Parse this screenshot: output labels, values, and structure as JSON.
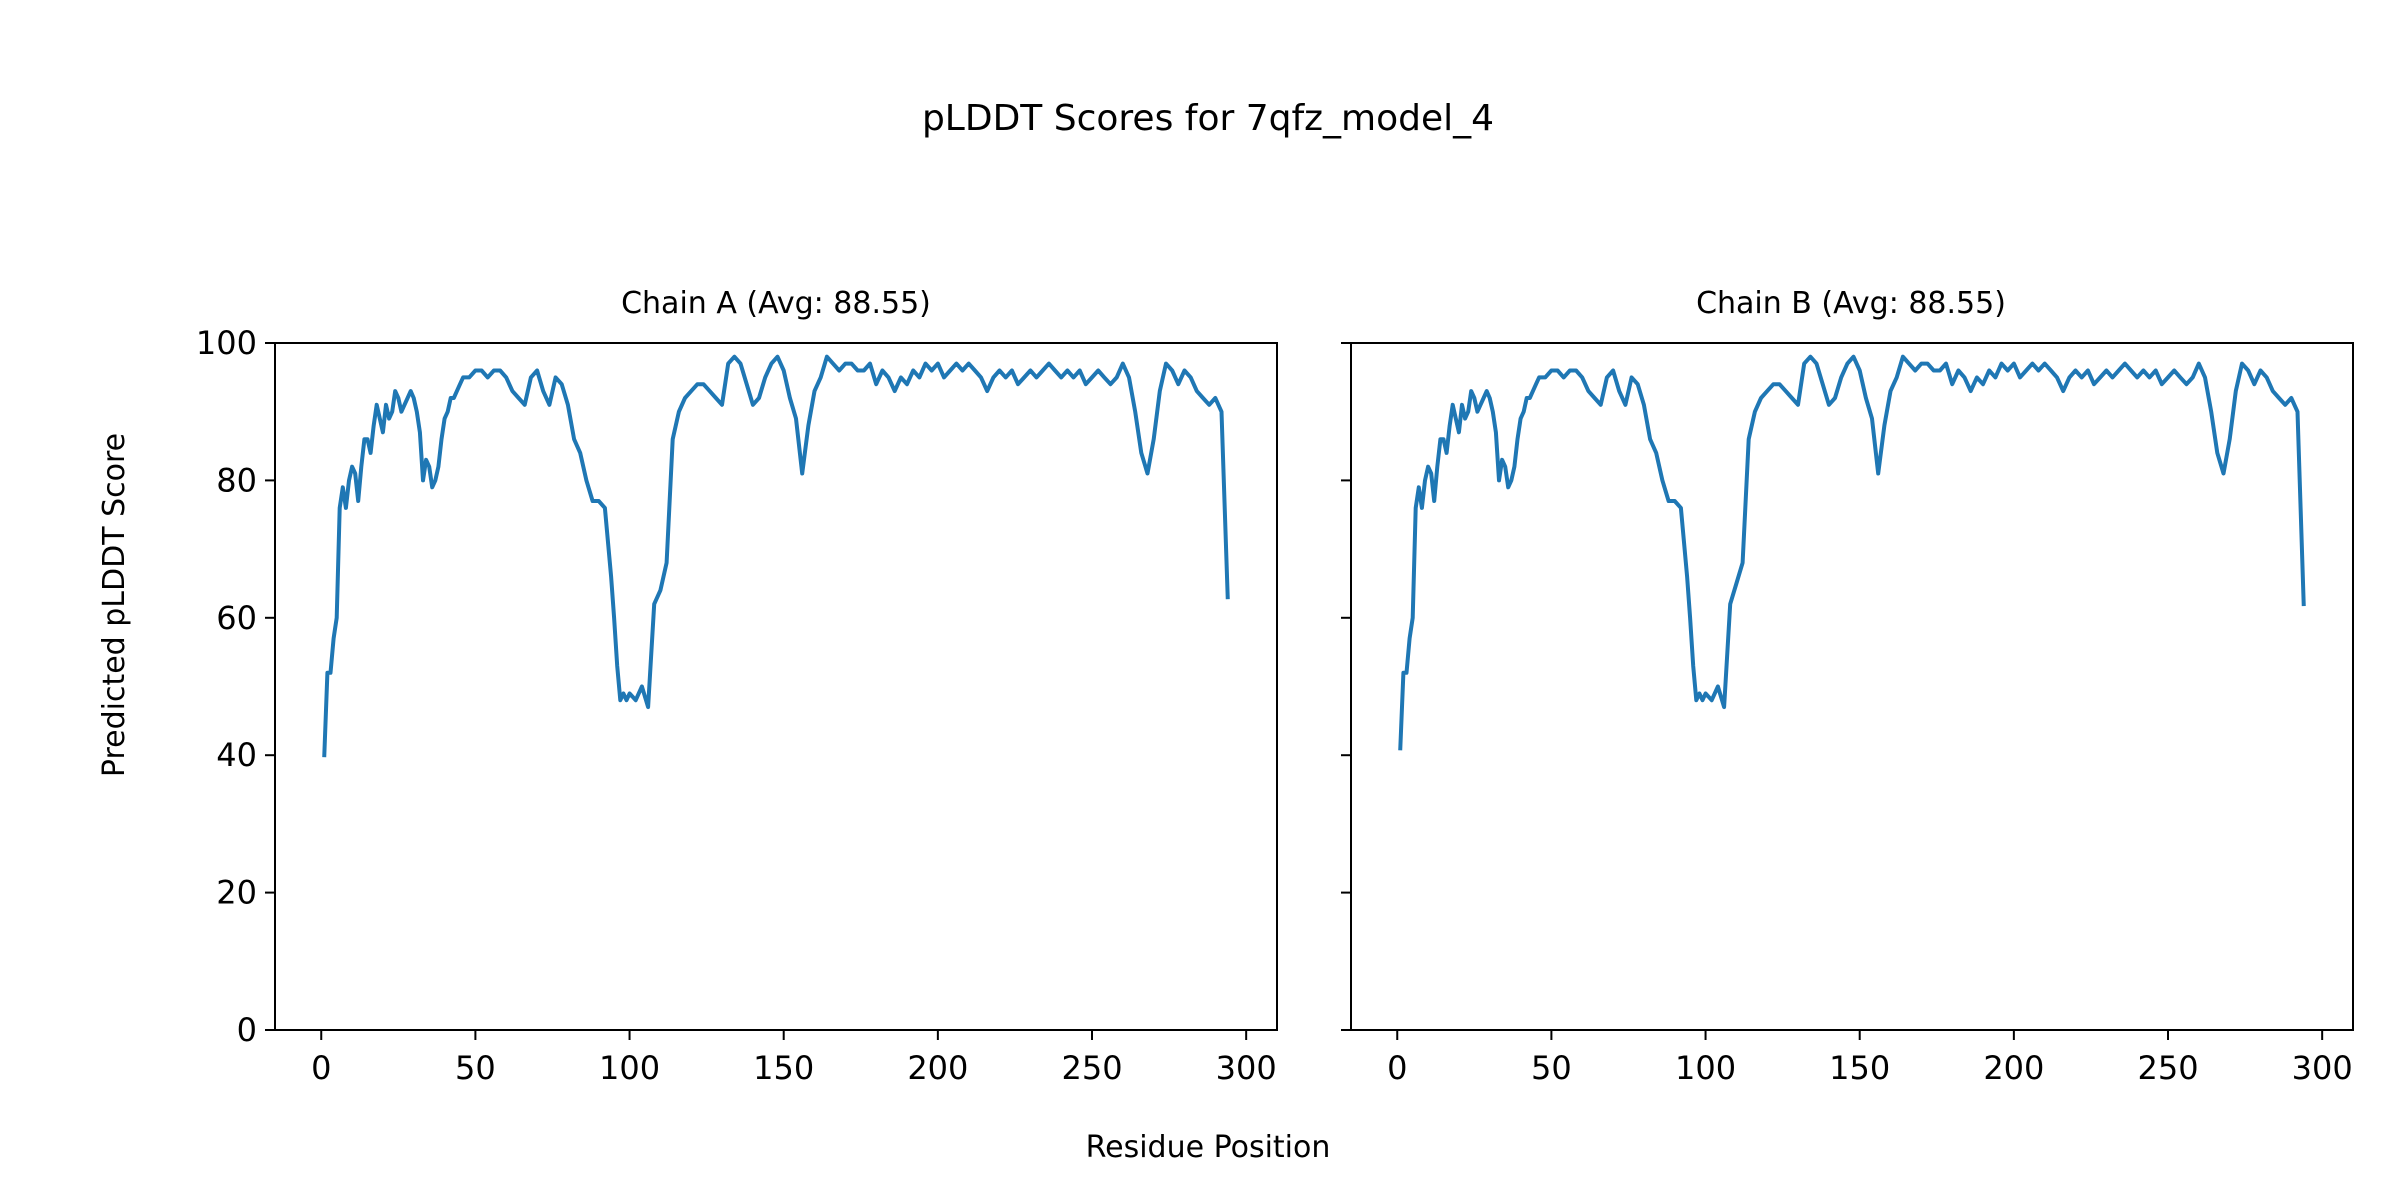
{
  "figure": {
    "title": "pLDDT Scores for 7qfz_model_4",
    "xlabel": "Residue Position",
    "ylabel": "Predicted pLDDT Score"
  },
  "colors": {
    "line": "#1f77b4",
    "axis": "#000000",
    "background": "#ffffff"
  },
  "chart_data": [
    {
      "type": "line",
      "title": "Chain A (Avg: 88.55)",
      "xlabel": "Residue Position",
      "ylabel": "Predicted pLDDT Score",
      "xlim": [
        -15,
        310
      ],
      "ylim": [
        0,
        100
      ],
      "xticks": [
        0,
        50,
        100,
        150,
        200,
        250,
        300
      ],
      "yticks": [
        0,
        20,
        40,
        60,
        80,
        100
      ],
      "grid": false,
      "series": [
        {
          "x": [
            1,
            2,
            3,
            4,
            5,
            6,
            7,
            8,
            9,
            10,
            11,
            12,
            13,
            14,
            15,
            16,
            17,
            18,
            19,
            20,
            21,
            22,
            23,
            24,
            25,
            26,
            27,
            28,
            29,
            30,
            31,
            32,
            33,
            34,
            35,
            36,
            37,
            38,
            39,
            40,
            41,
            42,
            43,
            44,
            45,
            46,
            48,
            50,
            52,
            54,
            56,
            58,
            60,
            62,
            64,
            66,
            68,
            70,
            72,
            74,
            76,
            78,
            80,
            82,
            84,
            86,
            88,
            90,
            92,
            94,
            95,
            96,
            97,
            98,
            99,
            100,
            102,
            104,
            106,
            108,
            110,
            112,
            114,
            116,
            118,
            120,
            122,
            124,
            126,
            128,
            130,
            132,
            134,
            136,
            138,
            140,
            142,
            144,
            146,
            148,
            150,
            152,
            154,
            156,
            158,
            160,
            162,
            164,
            166,
            168,
            170,
            172,
            174,
            176,
            178,
            180,
            182,
            184,
            186,
            188,
            190,
            192,
            194,
            196,
            198,
            200,
            202,
            204,
            206,
            208,
            210,
            212,
            214,
            216,
            218,
            220,
            222,
            224,
            226,
            228,
            230,
            232,
            234,
            236,
            238,
            240,
            242,
            244,
            246,
            248,
            250,
            252,
            254,
            256,
            258,
            260,
            262,
            264,
            266,
            268,
            270,
            272,
            274,
            276,
            278,
            280,
            282,
            284,
            286,
            288,
            290,
            292,
            294
          ],
          "y": [
            40,
            52,
            52,
            57,
            60,
            76,
            79,
            76,
            80,
            82,
            81,
            77,
            82,
            86,
            86,
            84,
            88,
            91,
            89,
            87,
            91,
            89,
            90,
            93,
            92,
            90,
            91,
            92,
            93,
            92,
            90,
            87,
            80,
            83,
            82,
            79,
            80,
            82,
            86,
            89,
            90,
            92,
            92,
            93,
            94,
            95,
            95,
            96,
            96,
            95,
            96,
            96,
            95,
            93,
            92,
            91,
            95,
            96,
            93,
            91,
            95,
            94,
            91,
            86,
            84,
            80,
            77,
            77,
            76,
            66,
            60,
            53,
            48,
            49,
            48,
            49,
            48,
            50,
            47,
            62,
            64,
            68,
            86,
            90,
            92,
            93,
            94,
            94,
            93,
            92,
            91,
            97,
            98,
            97,
            94,
            91,
            92,
            95,
            97,
            98,
            96,
            92,
            89,
            81,
            88,
            93,
            95,
            98,
            97,
            96,
            97,
            97,
            96,
            96,
            97,
            94,
            96,
            95,
            93,
            95,
            94,
            96,
            95,
            97,
            96,
            97,
            95,
            96,
            97,
            96,
            97,
            96,
            95,
            93,
            95,
            96,
            95,
            96,
            94,
            95,
            96,
            95,
            96,
            97,
            96,
            95,
            96,
            95,
            96,
            94,
            95,
            96,
            95,
            94,
            95,
            97,
            95,
            90,
            84,
            81,
            86,
            93,
            97,
            96,
            94,
            96,
            95,
            93,
            92,
            91,
            92,
            90,
            63
          ]
        }
      ]
    },
    {
      "type": "line",
      "title": "Chain B (Avg: 88.55)",
      "xlabel": "Residue Position",
      "xlim": [
        -15,
        310
      ],
      "ylim": [
        0,
        100
      ],
      "xticks": [
        0,
        50,
        100,
        150,
        200,
        250,
        300
      ],
      "yticks": [
        0,
        20,
        40,
        60,
        80,
        100
      ],
      "grid": false,
      "series": [
        {
          "x": [
            1,
            2,
            3,
            4,
            5,
            6,
            7,
            8,
            9,
            10,
            11,
            12,
            13,
            14,
            15,
            16,
            17,
            18,
            19,
            20,
            21,
            22,
            23,
            24,
            25,
            26,
            27,
            28,
            29,
            30,
            31,
            32,
            33,
            34,
            35,
            36,
            37,
            38,
            39,
            40,
            41,
            42,
            43,
            44,
            45,
            46,
            48,
            50,
            52,
            54,
            56,
            58,
            60,
            62,
            64,
            66,
            68,
            70,
            72,
            74,
            76,
            78,
            80,
            82,
            84,
            86,
            88,
            90,
            92,
            94,
            95,
            96,
            97,
            98,
            99,
            100,
            102,
            104,
            106,
            108,
            110,
            112,
            114,
            116,
            118,
            120,
            122,
            124,
            126,
            128,
            130,
            132,
            134,
            136,
            138,
            140,
            142,
            144,
            146,
            148,
            150,
            152,
            154,
            156,
            158,
            160,
            162,
            164,
            166,
            168,
            170,
            172,
            174,
            176,
            178,
            180,
            182,
            184,
            186,
            188,
            190,
            192,
            194,
            196,
            198,
            200,
            202,
            204,
            206,
            208,
            210,
            212,
            214,
            216,
            218,
            220,
            222,
            224,
            226,
            228,
            230,
            232,
            234,
            236,
            238,
            240,
            242,
            244,
            246,
            248,
            250,
            252,
            254,
            256,
            258,
            260,
            262,
            264,
            266,
            268,
            270,
            272,
            274,
            276,
            278,
            280,
            282,
            284,
            286,
            288,
            290,
            292,
            294
          ],
          "y": [
            41,
            52,
            52,
            57,
            60,
            76,
            79,
            76,
            80,
            82,
            81,
            77,
            82,
            86,
            86,
            84,
            88,
            91,
            89,
            87,
            91,
            89,
            90,
            93,
            92,
            90,
            91,
            92,
            93,
            92,
            90,
            87,
            80,
            83,
            82,
            79,
            80,
            82,
            86,
            89,
            90,
            92,
            92,
            93,
            94,
            95,
            95,
            96,
            96,
            95,
            96,
            96,
            95,
            93,
            92,
            91,
            95,
            96,
            93,
            91,
            95,
            94,
            91,
            86,
            84,
            80,
            77,
            77,
            76,
            66,
            60,
            53,
            48,
            49,
            48,
            49,
            48,
            50,
            47,
            62,
            65,
            68,
            86,
            90,
            92,
            93,
            94,
            94,
            93,
            92,
            91,
            97,
            98,
            97,
            94,
            91,
            92,
            95,
            97,
            98,
            96,
            92,
            89,
            81,
            88,
            93,
            95,
            98,
            97,
            96,
            97,
            97,
            96,
            96,
            97,
            94,
            96,
            95,
            93,
            95,
            94,
            96,
            95,
            97,
            96,
            97,
            95,
            96,
            97,
            96,
            97,
            96,
            95,
            93,
            95,
            96,
            95,
            96,
            94,
            95,
            96,
            95,
            96,
            97,
            96,
            95,
            96,
            95,
            96,
            94,
            95,
            96,
            95,
            94,
            95,
            97,
            95,
            90,
            84,
            81,
            86,
            93,
            97,
            96,
            94,
            96,
            95,
            93,
            92,
            91,
            92,
            90,
            62
          ]
        }
      ]
    }
  ]
}
